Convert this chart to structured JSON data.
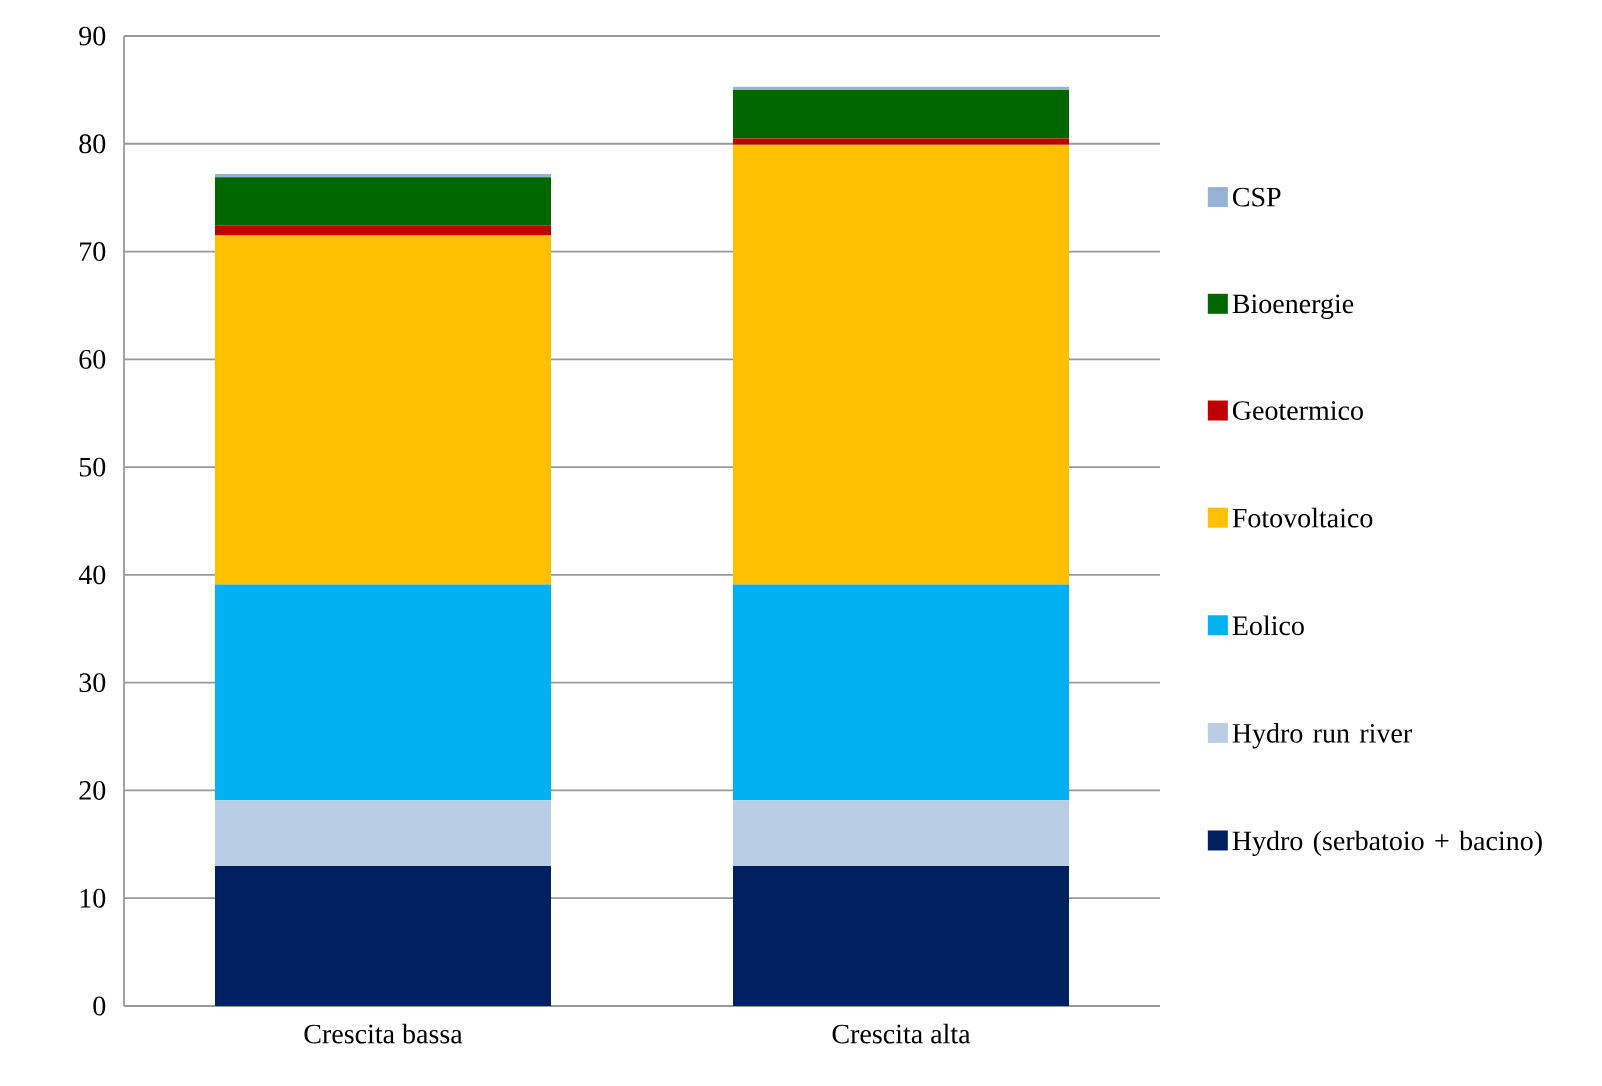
{
  "chart_data": {
    "type": "bar",
    "stacked": true,
    "categories": [
      "Crescita bassa",
      "Crescita alta"
    ],
    "series": [
      {
        "name": "Hydro (serbatoio + bacino)",
        "color": "#002060",
        "values": [
          13.0,
          13.0
        ]
      },
      {
        "name": "Hydro run river",
        "color": "#b9cde5",
        "values": [
          6.1,
          6.1
        ]
      },
      {
        "name": "Eolico",
        "color": "#00b0f0",
        "values": [
          20.0,
          20.0
        ]
      },
      {
        "name": "Fotovoltaico",
        "color": "#ffc000",
        "values": [
          32.4,
          40.8
        ]
      },
      {
        "name": "Geotermico",
        "color": "#c00000",
        "values": [
          0.9,
          0.6
        ]
      },
      {
        "name": "Bioenergie",
        "color": "#006600",
        "values": [
          4.5,
          4.5
        ]
      },
      {
        "name": "CSP",
        "color": "#95b3d7",
        "values": [
          0.3,
          0.3
        ]
      }
    ],
    "ylim": [
      0,
      90
    ],
    "yticks": [
      0,
      10,
      20,
      30,
      40,
      50,
      60,
      70,
      80,
      90
    ],
    "grid": "y",
    "legend": "right"
  }
}
